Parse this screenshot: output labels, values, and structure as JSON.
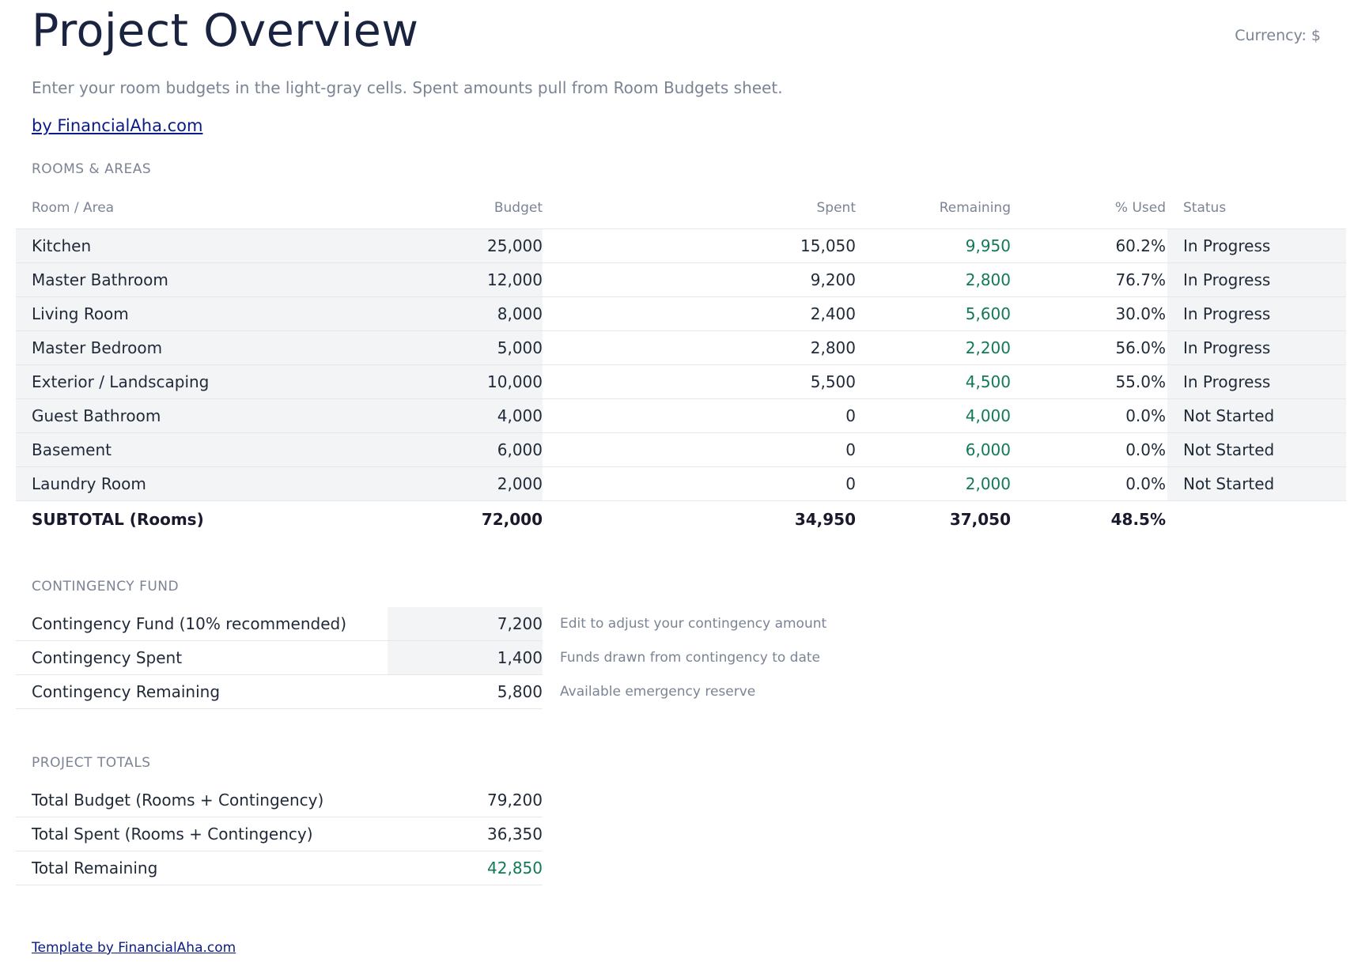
{
  "header": {
    "title": "Project Overview",
    "currency": "Currency: $",
    "subtitle": "Enter your room budgets in the light-gray cells. Spent amounts pull from Room Budgets sheet.",
    "link": "by FinancialAha.com"
  },
  "rooms": {
    "section_label": "ROOMS & AREAS",
    "columns": [
      "Room / Area",
      "Budget",
      "Spent",
      "Remaining",
      "% Used",
      "Status"
    ],
    "rows": [
      {
        "room": "Kitchen",
        "budget": "25,000",
        "spent": "15,050",
        "remaining": "9,950",
        "used": "60.2%",
        "status": "In Progress"
      },
      {
        "room": "Master Bathroom",
        "budget": "12,000",
        "spent": "9,200",
        "remaining": "2,800",
        "used": "76.7%",
        "status": "In Progress"
      },
      {
        "room": "Living Room",
        "budget": "8,000",
        "spent": "2,400",
        "remaining": "5,600",
        "used": "30.0%",
        "status": "In Progress"
      },
      {
        "room": "Master Bedroom",
        "budget": "5,000",
        "spent": "2,800",
        "remaining": "2,200",
        "used": "56.0%",
        "status": "In Progress"
      },
      {
        "room": "Exterior / Landscaping",
        "budget": "10,000",
        "spent": "5,500",
        "remaining": "4,500",
        "used": "55.0%",
        "status": "In Progress"
      },
      {
        "room": "Guest Bathroom",
        "budget": "4,000",
        "spent": "0",
        "remaining": "4,000",
        "used": "0.0%",
        "status": "Not Started"
      },
      {
        "room": "Basement",
        "budget": "6,000",
        "spent": "0",
        "remaining": "6,000",
        "used": "0.0%",
        "status": "Not Started"
      },
      {
        "room": "Laundry Room",
        "budget": "2,000",
        "spent": "0",
        "remaining": "2,000",
        "used": "0.0%",
        "status": "Not Started"
      }
    ],
    "subtotal": {
      "label": "SUBTOTAL (Rooms)",
      "budget": "72,000",
      "spent": "34,950",
      "remaining": "37,050",
      "used": "48.5%"
    }
  },
  "contingency": {
    "section_label": "CONTINGENCY FUND",
    "rows": [
      {
        "label": "Contingency Fund (10% recommended)",
        "value": "7,200",
        "note": "Edit to adjust your contingency amount"
      },
      {
        "label": "Contingency Spent",
        "value": "1,400",
        "note": "Funds drawn from contingency to date"
      },
      {
        "label": "Contingency Remaining",
        "value": "5,800",
        "note": "Available emergency reserve"
      }
    ]
  },
  "totals": {
    "section_label": "PROJECT TOTALS",
    "rows": [
      {
        "label": "Total Budget (Rooms + Contingency)",
        "value": "79,200"
      },
      {
        "label": "Total Spent (Rooms + Contingency)",
        "value": "36,350"
      },
      {
        "label": "Total Remaining",
        "value": "42,850"
      }
    ]
  },
  "footer": {
    "link": "Template by FinancialAha.com"
  },
  "colors": {
    "title": "#1a2340",
    "muted": "#7b8494",
    "positive": "#117a55",
    "link": "#0b1b86",
    "input_cell": "#f3f4f6"
  }
}
